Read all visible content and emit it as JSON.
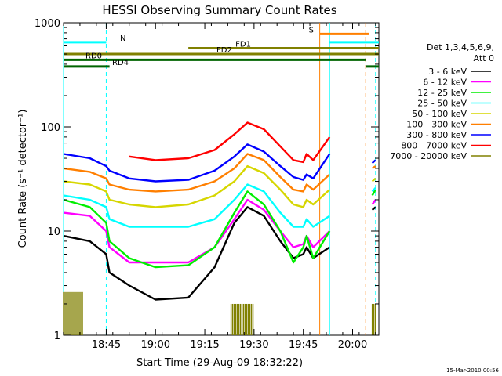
{
  "chart_data": {
    "type": "line",
    "title": "HESSI Observing Summary Count Rates",
    "xlabel": "Start Time (29-Aug-09 18:32:22)",
    "ylabel": "Count Rate (s⁻¹ detector⁻¹)",
    "yscale": "log",
    "ylim": [
      1,
      1000
    ],
    "xlim": [
      "18:32",
      "20:08"
    ],
    "x_ticks": [
      "18:45",
      "19:00",
      "19:15",
      "19:30",
      "19:45",
      "20:00"
    ],
    "y_ticks": [
      "1",
      "10",
      "100",
      "1000"
    ],
    "legend_header": [
      "Det 1,3,4,5,6,9,",
      "Att 0"
    ],
    "legend_position": "right",
    "timestamp": "15-Mar-2010 00:56",
    "x_times": [
      "18:32",
      "18:40",
      "18:45",
      "18:46",
      "18:52",
      "19:00",
      "19:10",
      "19:18",
      "19:24",
      "19:28",
      "19:33",
      "19:38",
      "19:42",
      "19:45",
      "19:46",
      "19:48",
      "19:53",
      "20:05",
      "20:06",
      "20:07"
    ],
    "series": [
      {
        "name": "3 - 6 keV",
        "color": "#000000",
        "values": [
          9,
          8,
          6,
          4,
          3,
          2.2,
          2.3,
          4.5,
          12,
          17,
          14,
          8,
          5.5,
          6,
          7,
          5.5,
          7,
          null,
          16,
          17
        ]
      },
      {
        "name": "6 - 12 keV",
        "color": "#ff00ff",
        "values": [
          15,
          14,
          10,
          7,
          5,
          5,
          5,
          7,
          13,
          20,
          16,
          10,
          7,
          7.5,
          9,
          7,
          10,
          null,
          18,
          20
        ]
      },
      {
        "name": "12 - 25 keV",
        "color": "#00ee00",
        "values": [
          20,
          17,
          12,
          8,
          5.5,
          4.5,
          4.7,
          7,
          15,
          24,
          18,
          10,
          5,
          7,
          9,
          5.5,
          10,
          null,
          22,
          25
        ]
      },
      {
        "name": "25 - 50 keV",
        "color": "#00ffff",
        "values": [
          22,
          20,
          17,
          13,
          11,
          11,
          11,
          13,
          20,
          28,
          24,
          15,
          11,
          11,
          13,
          11,
          14,
          null,
          24,
          26
        ]
      },
      {
        "name": "50 - 100 keV",
        "color": "#d6d600",
        "values": [
          30,
          28,
          24,
          20,
          18,
          17,
          18,
          22,
          30,
          42,
          36,
          25,
          18,
          17,
          20,
          18,
          25,
          null,
          30,
          32
        ]
      },
      {
        "name": "100 - 300 keV",
        "color": "#ff7f00",
        "values": [
          40,
          37,
          32,
          28,
          25,
          24,
          25,
          30,
          40,
          55,
          48,
          33,
          25,
          24,
          28,
          25,
          35,
          null,
          40,
          42
        ]
      },
      {
        "name": "300 - 800 keV",
        "color": "#0000ff",
        "values": [
          55,
          50,
          42,
          38,
          32,
          30,
          31,
          38,
          52,
          68,
          58,
          42,
          33,
          31,
          35,
          32,
          55,
          null,
          45,
          48
        ]
      },
      {
        "name": "800 - 7000 keV",
        "color": "#ff0000",
        "values": [
          null,
          null,
          null,
          null,
          52,
          48,
          50,
          60,
          85,
          110,
          95,
          65,
          48,
          46,
          55,
          48,
          80,
          null,
          null,
          null
        ]
      },
      {
        "name": "7000 - 20000 keV",
        "color": "#808000",
        "values": [
          null,
          null,
          null,
          null,
          null,
          null,
          null,
          null,
          null,
          null,
          null,
          null,
          null,
          null,
          null,
          null,
          null,
          null,
          null,
          null
        ]
      }
    ],
    "spikes": [
      {
        "series": "7000 - 20000 keV",
        "from": "18:32",
        "to": "18:38",
        "height": 2.6
      },
      {
        "series": "7000 - 20000 keV",
        "from": "19:23",
        "to": "19:30",
        "height": 2.0
      },
      {
        "series": "7000 - 20000 keV",
        "from": "20:06",
        "to": "20:07",
        "height": 2.0
      }
    ],
    "annotations": [
      {
        "label": "N",
        "color": "#00ffff",
        "y": 650,
        "from": "18:32",
        "to": "18:45"
      },
      {
        "label": "",
        "color": "#00ffff",
        "y": 650,
        "from": "19:53",
        "to": "20:08"
      },
      {
        "label": "S",
        "color": "#ff7f00",
        "y": 780,
        "from": "19:50",
        "to": "20:05"
      },
      {
        "label": "FD1",
        "color": "#808000",
        "y": 570,
        "from": "19:10",
        "to": "20:08"
      },
      {
        "label": "FD2",
        "color": "#808000",
        "y": 500,
        "from": "18:32",
        "to": "20:08"
      },
      {
        "label": "RD0",
        "color": "#006400",
        "y": 440,
        "from": "18:32",
        "to": "20:04"
      },
      {
        "label": "RD4",
        "color": "#006400",
        "y": 380,
        "from": "18:32",
        "to": "18:46"
      },
      {
        "label": "",
        "color": "#006400",
        "y": 380,
        "from": "20:04",
        "to": "20:08"
      }
    ],
    "vertical_markers": [
      {
        "time": "18:32",
        "color": "#00ffff",
        "style": "solid"
      },
      {
        "time": "18:45",
        "color": "#00ffff",
        "style": "dashed"
      },
      {
        "time": "19:50",
        "color": "#ff7f00",
        "style": "solid"
      },
      {
        "time": "19:53",
        "color": "#00ffff",
        "style": "solid"
      },
      {
        "time": "20:04",
        "color": "#ff7f00",
        "style": "dashed"
      },
      {
        "time": "20:07",
        "color": "#00ffff",
        "style": "dashed"
      }
    ]
  }
}
